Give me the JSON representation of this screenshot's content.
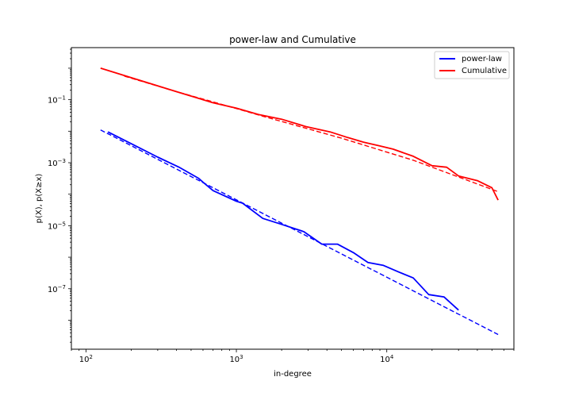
{
  "chart_data": {
    "type": "line",
    "title": "power-law and Cumulative",
    "xlabel": "in-degree",
    "ylabel": "p(X),  p(X≥x)",
    "x_scale": "log",
    "y_scale": "log",
    "xlim": [
      80,
      70000
    ],
    "ylim": [
      1.2e-09,
      4.5
    ],
    "x_ticks": [
      {
        "value": 100,
        "base": "10",
        "exp": "2"
      },
      {
        "value": 1000,
        "base": "10",
        "exp": "3"
      },
      {
        "value": 10000,
        "base": "10",
        "exp": "4"
      }
    ],
    "y_ticks": [
      {
        "value": 0.1,
        "base": "10",
        "exp": "−1"
      },
      {
        "value": 0.001,
        "base": "10",
        "exp": "−3"
      },
      {
        "value": 1e-05,
        "base": "10",
        "exp": "−5"
      },
      {
        "value": 1e-07,
        "base": "10",
        "exp": "−7"
      }
    ],
    "grid": false,
    "legend_position": "top-right",
    "series": [
      {
        "name": "power-law",
        "color": "#0000ff",
        "style": "solid",
        "points": [
          [
            140,
            0.0095
          ],
          [
            200,
            0.004
          ],
          [
            300,
            0.0015
          ],
          [
            420,
            0.0007
          ],
          [
            560,
            0.00032
          ],
          [
            600,
            0.00024
          ],
          [
            700,
            0.00013
          ],
          [
            1000,
            6e-05
          ],
          [
            1100,
            5.2e-05
          ],
          [
            1500,
            1.7e-05
          ],
          [
            2000,
            1.1e-05
          ],
          [
            2800,
            6.5e-06
          ],
          [
            3700,
            2.6e-06
          ],
          [
            4700,
            2.6e-06
          ],
          [
            6000,
            1.4e-06
          ],
          [
            7500,
            6.8e-07
          ],
          [
            9500,
            5.5e-07
          ],
          [
            12000,
            3.4e-07
          ],
          [
            15000,
            2.2e-07
          ],
          [
            19000,
            6.5e-08
          ],
          [
            24000,
            5.5e-08
          ],
          [
            30000,
            2.1e-08
          ]
        ]
      },
      {
        "name": "Cumulative",
        "color": "#ff0000",
        "style": "solid",
        "points": [
          [
            125,
            1.0
          ],
          [
            200,
            0.5
          ],
          [
            400,
            0.18
          ],
          [
            700,
            0.08
          ],
          [
            1000,
            0.054
          ],
          [
            1400,
            0.034
          ],
          [
            2000,
            0.024
          ],
          [
            2900,
            0.014
          ],
          [
            4200,
            0.0095
          ],
          [
            5500,
            0.0063
          ],
          [
            7000,
            0.0045
          ],
          [
            9000,
            0.0034
          ],
          [
            11000,
            0.0027
          ],
          [
            15000,
            0.0016
          ],
          [
            20000,
            0.0008
          ],
          [
            25000,
            0.00072
          ],
          [
            30000,
            0.00038
          ],
          [
            40000,
            0.00027
          ],
          [
            50000,
            0.00016
          ],
          [
            55000,
            6.5e-05
          ]
        ]
      },
      {
        "name": "",
        "color": "#0000ff",
        "style": "dashed",
        "points": [
          [
            125,
            0.011
          ],
          [
            55000,
            3.5e-09
          ]
        ]
      },
      {
        "name": "",
        "color": "#ff0000",
        "style": "dashed",
        "points": [
          [
            180,
            0.56
          ],
          [
            400,
            0.18
          ],
          [
            700,
            0.085
          ],
          [
            1500,
            0.03
          ],
          [
            5000,
            0.006
          ],
          [
            15000,
            0.0012
          ],
          [
            55000,
            0.00012
          ]
        ]
      }
    ]
  }
}
